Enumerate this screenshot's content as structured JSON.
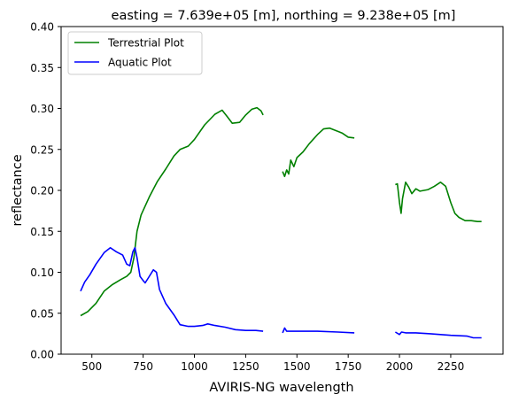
{
  "chart_data": {
    "type": "line",
    "title": "easting = 7.639e+05 [m], northing = 9.238e+05 [m]",
    "xlabel": "AVIRIS-NG wavelength",
    "ylabel": "reflectance",
    "xlim": [
      350,
      2505
    ],
    "ylim": [
      0.0,
      0.4
    ],
    "xticks": [
      500,
      750,
      1000,
      1250,
      1500,
      1750,
      2000,
      2250
    ],
    "xtick_labels": [
      "500",
      "750",
      "1000",
      "1250",
      "1500",
      "1750",
      "2000",
      "2250"
    ],
    "yticks": [
      0.0,
      0.05,
      0.1,
      0.15,
      0.2,
      0.25,
      0.3,
      0.35,
      0.4
    ],
    "ytick_labels": [
      "0.00",
      "0.05",
      "0.10",
      "0.15",
      "0.20",
      "0.25",
      "0.30",
      "0.35",
      "0.40"
    ],
    "grid": false,
    "legend_position": "upper-left",
    "series": [
      {
        "name": "Terrestrial Plot",
        "color": "#008000",
        "segments": [
          [
            [
              445,
              0.047
            ],
            [
              480,
              0.052
            ],
            [
              520,
              0.062
            ],
            [
              560,
              0.077
            ],
            [
              600,
              0.085
            ],
            [
              640,
              0.091
            ],
            [
              670,
              0.095
            ],
            [
              690,
              0.1
            ],
            [
              705,
              0.118
            ],
            [
              720,
              0.15
            ],
            [
              740,
              0.17
            ],
            [
              780,
              0.192
            ],
            [
              820,
              0.211
            ],
            [
              860,
              0.226
            ],
            [
              900,
              0.242
            ],
            [
              930,
              0.25
            ],
            [
              970,
              0.254
            ],
            [
              1000,
              0.262
            ],
            [
              1050,
              0.28
            ],
            [
              1100,
              0.293
            ],
            [
              1135,
              0.298
            ],
            [
              1160,
              0.29
            ],
            [
              1185,
              0.282
            ],
            [
              1220,
              0.283
            ],
            [
              1250,
              0.292
            ],
            [
              1280,
              0.299
            ],
            [
              1305,
              0.301
            ],
            [
              1325,
              0.297
            ],
            [
              1335,
              0.292
            ]
          ],
          [
            [
              1430,
              0.223
            ],
            [
              1440,
              0.217
            ],
            [
              1450,
              0.225
            ],
            [
              1460,
              0.22
            ],
            [
              1470,
              0.237
            ],
            [
              1485,
              0.229
            ],
            [
              1500,
              0.24
            ],
            [
              1530,
              0.247
            ],
            [
              1560,
              0.257
            ],
            [
              1600,
              0.268
            ],
            [
              1630,
              0.275
            ],
            [
              1660,
              0.276
            ],
            [
              1690,
              0.273
            ],
            [
              1720,
              0.27
            ],
            [
              1750,
              0.265
            ],
            [
              1780,
              0.264
            ]
          ],
          [
            [
              1980,
              0.207
            ],
            [
              1990,
              0.208
            ],
            [
              2000,
              0.185
            ],
            [
              2008,
              0.172
            ],
            [
              2015,
              0.19
            ],
            [
              2030,
              0.21
            ],
            [
              2045,
              0.204
            ],
            [
              2060,
              0.196
            ],
            [
              2080,
              0.202
            ],
            [
              2100,
              0.199
            ],
            [
              2140,
              0.201
            ],
            [
              2170,
              0.205
            ],
            [
              2200,
              0.21
            ],
            [
              2225,
              0.205
            ],
            [
              2250,
              0.185
            ],
            [
              2270,
              0.172
            ],
            [
              2290,
              0.167
            ],
            [
              2320,
              0.163
            ],
            [
              2350,
              0.163
            ],
            [
              2380,
              0.162
            ],
            [
              2400,
              0.162
            ]
          ]
        ]
      },
      {
        "name": "Aquatic Plot",
        "color": "#0000ff",
        "segments": [
          [
            [
              445,
              0.077
            ],
            [
              465,
              0.088
            ],
            [
              490,
              0.097
            ],
            [
              520,
              0.11
            ],
            [
              560,
              0.124
            ],
            [
              590,
              0.13
            ],
            [
              620,
              0.125
            ],
            [
              650,
              0.121
            ],
            [
              670,
              0.11
            ],
            [
              685,
              0.108
            ],
            [
              700,
              0.125
            ],
            [
              710,
              0.13
            ],
            [
              720,
              0.118
            ],
            [
              735,
              0.095
            ],
            [
              750,
              0.09
            ],
            [
              760,
              0.087
            ],
            [
              775,
              0.093
            ],
            [
              800,
              0.103
            ],
            [
              815,
              0.1
            ],
            [
              830,
              0.079
            ],
            [
              860,
              0.062
            ],
            [
              900,
              0.048
            ],
            [
              930,
              0.036
            ],
            [
              970,
              0.034
            ],
            [
              1000,
              0.034
            ],
            [
              1040,
              0.035
            ],
            [
              1065,
              0.037
            ],
            [
              1100,
              0.035
            ],
            [
              1150,
              0.033
            ],
            [
              1200,
              0.03
            ],
            [
              1250,
              0.029
            ],
            [
              1300,
              0.029
            ],
            [
              1335,
              0.028
            ]
          ],
          [
            [
              1430,
              0.026
            ],
            [
              1440,
              0.032
            ],
            [
              1450,
              0.028
            ],
            [
              1500,
              0.028
            ],
            [
              1600,
              0.028
            ],
            [
              1700,
              0.027
            ],
            [
              1780,
              0.026
            ]
          ],
          [
            [
              1980,
              0.027
            ],
            [
              2000,
              0.024
            ],
            [
              2010,
              0.027
            ],
            [
              2030,
              0.026
            ],
            [
              2080,
              0.026
            ],
            [
              2150,
              0.025
            ],
            [
              2250,
              0.023
            ],
            [
              2330,
              0.022
            ],
            [
              2360,
              0.02
            ],
            [
              2400,
              0.02
            ]
          ]
        ]
      }
    ]
  }
}
